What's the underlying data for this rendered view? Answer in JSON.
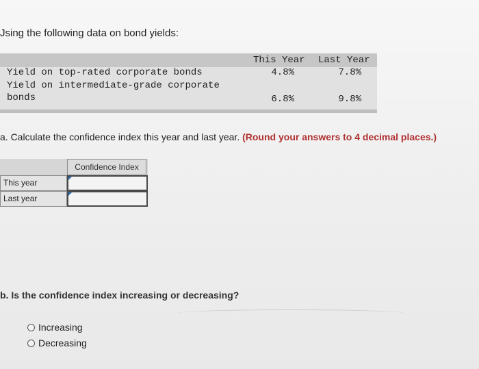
{
  "intro": "Jsing the following data on bond yields:",
  "bond_table": {
    "headers": [
      "This Year",
      "Last Year"
    ],
    "rows": [
      {
        "label": "Yield on top-rated corporate bonds",
        "this_year": "4.8%",
        "last_year": "7.8%"
      },
      {
        "label": "Yield on intermediate-grade corporate",
        "label_cont": "bonds",
        "this_year": "6.8%",
        "last_year": "9.8%"
      }
    ]
  },
  "question_a": {
    "prefix": "a. Calculate the confidence index this year and last year.",
    "emphasis": "(Round your answers to 4 decimal places.)"
  },
  "ci_table": {
    "header": "Confidence Index",
    "rows": [
      {
        "label": "This year",
        "value": ""
      },
      {
        "label": "Last year",
        "value": ""
      }
    ]
  },
  "question_b": "b. Is the confidence index increasing or decreasing?",
  "options": [
    "Increasing",
    "Decreasing"
  ]
}
